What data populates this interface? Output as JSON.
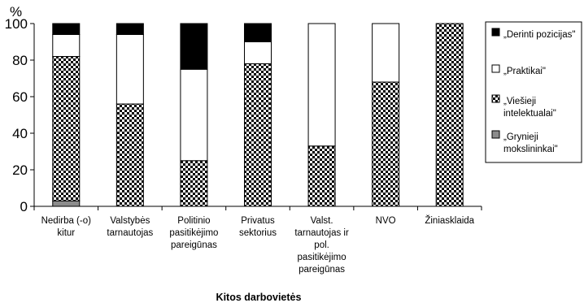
{
  "chart_data": {
    "type": "bar",
    "stacked": true,
    "y_unit_label": "%",
    "xlabel": "Kitos darbovietės",
    "ylim": [
      0,
      100
    ],
    "yticks": [
      0,
      20,
      40,
      60,
      80,
      100
    ],
    "grid": false,
    "legend_position": "right",
    "categories": [
      [
        "Nedirba (-o)",
        "kitur"
      ],
      [
        "Valstybės",
        "tarnautojas"
      ],
      [
        "Politinio",
        "pasitikėjimo",
        "pareigūnas"
      ],
      [
        "Privatus",
        "sektorius"
      ],
      [
        "Valst.",
        "tarnautojas ir",
        "pol.",
        "pasitikėjimo",
        "pareigūnas"
      ],
      [
        "NVO"
      ],
      [
        "Žiniasklaida"
      ]
    ],
    "series": [
      {
        "name": "„Grynieji mokslininkai\"",
        "legend_lines": [
          "„Grynieji",
          "mokslininkai\""
        ],
        "fill": "gray",
        "values": [
          3,
          0,
          0,
          0,
          0,
          0,
          0
        ]
      },
      {
        "name": "„Viešieji intelektualai\"",
        "legend_lines": [
          "„Viešieji",
          "intelektualai\""
        ],
        "fill": "checker",
        "values": [
          79,
          56,
          25,
          78,
          33,
          68,
          100
        ]
      },
      {
        "name": "„Praktikai\"",
        "legend_lines": [
          "„Praktikai\""
        ],
        "fill": "white",
        "values": [
          12,
          38,
          50,
          12,
          67,
          32,
          0
        ]
      },
      {
        "name": "„Derinti pozicijas\"",
        "legend_lines": [
          "„Derinti pozicijas\""
        ],
        "fill": "black",
        "values": [
          6,
          6,
          25,
          10,
          0,
          0,
          0
        ]
      }
    ],
    "legend_order": [
      3,
      2,
      1,
      0
    ]
  },
  "colors": {
    "black": "#000000",
    "white": "#ffffff",
    "gray": "#8c8c8c",
    "checker": "#000000"
  }
}
